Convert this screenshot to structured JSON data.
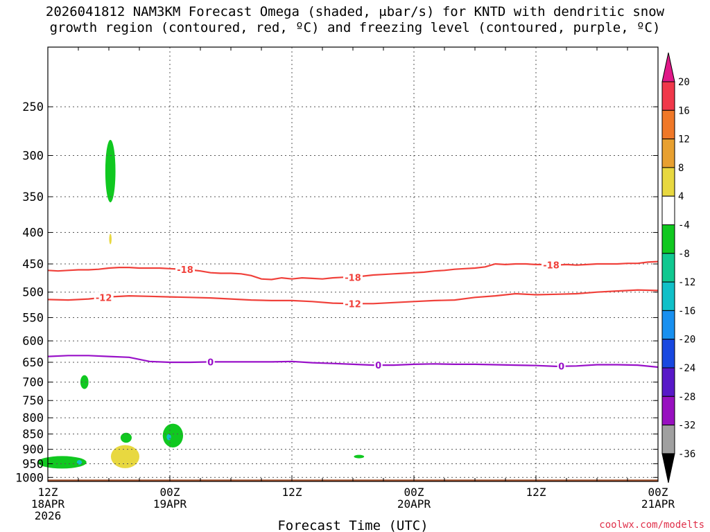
{
  "title": {
    "line1": "2026041812 NAM3KM Forecast Omega (shaded, μbar/s) for KNTD with dendritic snow",
    "line2": "growth region (contoured, red, ºC) and freezing level (contoured, purple, ºC)"
  },
  "credit": "coolwx.com/modelts",
  "chart_data": {
    "type": "heatmap",
    "xlabel": "Forecast Time (UTC)",
    "x_range_hours": [
      0,
      60
    ],
    "x_ticks": [
      {
        "hour": 0,
        "l1": "12Z",
        "l2": "18APR",
        "l3": "2026"
      },
      {
        "hour": 12,
        "l1": "00Z",
        "l2": "19APR",
        "l3": ""
      },
      {
        "hour": 24,
        "l1": "12Z",
        "l2": "",
        "l3": ""
      },
      {
        "hour": 36,
        "l1": "00Z",
        "l2": "20APR",
        "l3": ""
      },
      {
        "hour": 48,
        "l1": "12Z",
        "l2": "",
        "l3": ""
      },
      {
        "hour": 60,
        "l1": "00Z",
        "l2": "21APR",
        "l3": ""
      }
    ],
    "minor_x_hours": [
      3,
      6,
      9,
      15,
      18,
      21,
      27,
      30,
      33,
      39,
      42,
      45,
      51,
      54,
      57
    ],
    "y_axis": "pressure (hPa)",
    "y_range_hpa": [
      200,
      1015
    ],
    "y_ticks": [
      250,
      300,
      350,
      400,
      450,
      500,
      550,
      600,
      650,
      700,
      750,
      800,
      850,
      900,
      950,
      1000
    ],
    "colorbar": {
      "labels": [
        "20",
        "16",
        "12",
        "8",
        "4",
        "-4",
        "-8",
        "-12",
        "-16",
        "-20",
        "-24",
        "-28",
        "-32",
        "-36"
      ],
      "bins": [
        {
          "lo": 16,
          "hi": 20,
          "color": "#f0384a"
        },
        {
          "lo": 12,
          "hi": 16,
          "color": "#f07828"
        },
        {
          "lo": 8,
          "hi": 12,
          "color": "#e8a030"
        },
        {
          "lo": 4,
          "hi": 8,
          "color": "#e8d840"
        },
        {
          "lo": -4,
          "hi": 4,
          "color": "#ffffff"
        },
        {
          "lo": -8,
          "hi": -4,
          "color": "#10c820"
        },
        {
          "lo": -12,
          "hi": -8,
          "color": "#10c890"
        },
        {
          "lo": -16,
          "hi": -12,
          "color": "#10c0c8"
        },
        {
          "lo": -20,
          "hi": -16,
          "color": "#1890f0"
        },
        {
          "lo": -24,
          "hi": -20,
          "color": "#1848e0"
        },
        {
          "lo": -28,
          "hi": -24,
          "color": "#5818c8"
        },
        {
          "lo": -32,
          "hi": -28,
          "color": "#9810c0"
        },
        {
          "lo": -36,
          "hi": -32,
          "color": "#a0a0a0"
        }
      ],
      "top_triangle_color": "#e01888",
      "bottom_triangle_color": "#000000"
    },
    "shaded_regions": [
      {
        "name": "omega-green-300",
        "hour_center": 6.15,
        "p_center": 318,
        "hour_halfwidth": 0.5,
        "p_halfwidth": 37,
        "color": "#10c820"
      },
      {
        "name": "omega-yellow-410",
        "hour_center": 6.15,
        "p_center": 410,
        "hour_halfwidth": 0.12,
        "p_halfwidth": 8,
        "color": "#e8d840"
      },
      {
        "name": "omega-green-700",
        "hour_center": 3.6,
        "p_center": 700,
        "hour_halfwidth": 0.4,
        "p_halfwidth": 18,
        "color": "#10c820"
      },
      {
        "name": "omega-green-850",
        "hour_center": 12.3,
        "p_center": 855,
        "hour_halfwidth": 1.0,
        "p_halfwidth": 38,
        "color": "#10c820"
      },
      {
        "name": "omega-green-860",
        "hour_center": 7.7,
        "p_center": 862,
        "hour_halfwidth": 0.55,
        "p_halfwidth": 16,
        "color": "#10c820"
      },
      {
        "name": "omega-green-895",
        "hour_center": 7.75,
        "p_center": 897,
        "hour_halfwidth": 0.35,
        "p_halfwidth": 6,
        "color": "#10c820"
      },
      {
        "name": "omega-yellow-925",
        "hour_center": 7.6,
        "p_center": 925,
        "hour_halfwidth": 1.4,
        "p_halfwidth": 40,
        "color": "#e8d840"
      },
      {
        "name": "omega-green-940",
        "hour_center": 1.4,
        "p_center": 945,
        "hour_halfwidth": 2.4,
        "p_halfwidth": 22,
        "color": "#10c820"
      },
      {
        "name": "omega-green-925b",
        "hour_center": 30.6,
        "p_center": 925,
        "hour_halfwidth": 0.5,
        "p_halfwidth": 6,
        "color": "#10c820"
      },
      {
        "name": "omega-blue-860",
        "hour_center": 11.9,
        "p_center": 860,
        "hour_halfwidth": 0.22,
        "p_halfwidth": 10,
        "color": "#10c0c8"
      },
      {
        "name": "omega-blue-945",
        "hour_center": 3.1,
        "p_center": 945,
        "hour_halfwidth": 0.25,
        "p_halfwidth": 8,
        "color": "#10c0c8"
      }
    ],
    "contours": [
      {
        "name": "dgz-minus18",
        "value": -18,
        "label": "-18",
        "color": "#f0403a",
        "hours": [
          0,
          1,
          2,
          3,
          4,
          5,
          6,
          7,
          8,
          9,
          10,
          11,
          12,
          13,
          14,
          15,
          16,
          17,
          18,
          19,
          20,
          21,
          22,
          23,
          24,
          25,
          26,
          27,
          28,
          29,
          30,
          31,
          32,
          33,
          34,
          35,
          36,
          37,
          38,
          39,
          40,
          41,
          42,
          43,
          44,
          45,
          46,
          47,
          48,
          49,
          50,
          51,
          52,
          53,
          54,
          55,
          56,
          57,
          58,
          59,
          60
        ],
        "p": [
          461,
          462,
          461,
          460,
          460,
          459,
          457,
          456,
          456,
          457,
          457,
          457,
          458,
          459,
          460,
          462,
          465,
          466,
          466,
          467,
          470,
          476,
          477,
          474,
          476,
          474,
          475,
          476,
          474,
          473,
          473,
          471,
          469,
          468,
          467,
          466,
          465,
          464,
          462,
          461,
          459,
          458,
          457,
          455,
          450,
          451,
          450,
          450,
          451,
          451,
          452,
          451,
          452,
          451,
          450,
          450,
          450,
          449,
          449,
          447,
          446
        ],
        "label_hours": [
          13.5,
          30,
          49.5
        ]
      },
      {
        "name": "dgz-minus12",
        "value": -12,
        "label": "-12",
        "color": "#f0403a",
        "hours": [
          0,
          2,
          4,
          6,
          8,
          10,
          12,
          14,
          16,
          18,
          20,
          22,
          24,
          26,
          28,
          30,
          32,
          34,
          36,
          38,
          40,
          42,
          44,
          46,
          48,
          50,
          52,
          54,
          56,
          58,
          60
        ],
        "p": [
          514,
          515,
          513,
          509,
          507,
          508,
          509,
          510,
          511,
          513,
          515,
          516,
          516,
          518,
          521,
          522,
          522,
          520,
          518,
          516,
          515,
          510,
          507,
          503,
          505,
          504,
          503,
          500,
          498,
          496,
          497
        ],
        "label_hours": [
          5.5,
          30
        ]
      },
      {
        "name": "freezing-level",
        "value": 0,
        "label": "0",
        "color": "#9810c8",
        "hours": [
          0,
          2,
          4,
          6,
          8,
          10,
          12,
          14,
          16,
          18,
          20,
          22,
          24,
          26,
          28,
          30,
          32,
          34,
          36,
          38,
          40,
          42,
          44,
          46,
          48,
          50,
          52,
          54,
          56,
          58,
          60
        ],
        "p": [
          636,
          634,
          634,
          636,
          638,
          648,
          650,
          650,
          649,
          649,
          649,
          649,
          648,
          651,
          653,
          655,
          657,
          657,
          655,
          654,
          655,
          655,
          656,
          657,
          658,
          660,
          659,
          656,
          656,
          657,
          662
        ],
        "label_hours": [
          16,
          32.5,
          50.5
        ]
      }
    ],
    "terrain": {
      "surface_hpa": 1000,
      "color": "#a0522d"
    }
  }
}
